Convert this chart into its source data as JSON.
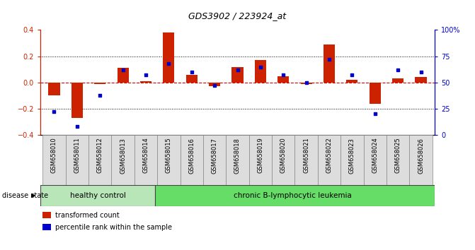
{
  "title": "GDS3902 / 223924_at",
  "samples": [
    "GSM658010",
    "GSM658011",
    "GSM658012",
    "GSM658013",
    "GSM658014",
    "GSM658015",
    "GSM658016",
    "GSM658017",
    "GSM658018",
    "GSM658019",
    "GSM658020",
    "GSM658021",
    "GSM658022",
    "GSM658023",
    "GSM658024",
    "GSM658025",
    "GSM658026"
  ],
  "transformed_count": [
    -0.1,
    -0.27,
    -0.01,
    0.11,
    0.01,
    0.38,
    0.06,
    -0.03,
    0.12,
    0.17,
    0.05,
    -0.01,
    0.29,
    0.02,
    -0.16,
    0.03,
    0.04
  ],
  "percentile_rank": [
    22,
    8,
    38,
    62,
    57,
    68,
    60,
    47,
    62,
    65,
    57,
    50,
    72,
    57,
    20,
    62,
    60
  ],
  "healthy_control_count": 5,
  "group_labels": [
    "healthy control",
    "chronic B-lymphocytic leukemia"
  ],
  "healthy_color": "#b8e6b8",
  "cll_color": "#66dd66",
  "bar_color": "#cc2200",
  "dot_color": "#0000cc",
  "ylim": [
    -0.4,
    0.4
  ],
  "y2lim": [
    0,
    100
  ],
  "yticks_left": [
    -0.4,
    -0.2,
    0.0,
    0.2,
    0.4
  ],
  "yticks_right": [
    0,
    25,
    50,
    75,
    100
  ],
  "y2_ticklabels": [
    "0",
    "25",
    "50",
    "75",
    "100%"
  ],
  "zero_line_color": "#dd0000",
  "legend_label_bar": "transformed count",
  "legend_label_dot": "percentile rank within the sample",
  "disease_state_label": "disease state",
  "title_fontsize": 9,
  "tick_fontsize": 6,
  "axis_label_fontsize": 7,
  "group_label_fontsize": 7.5
}
